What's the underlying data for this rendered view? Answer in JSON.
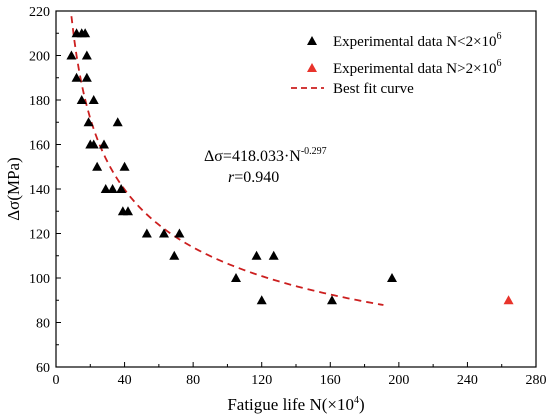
{
  "chart_data": {
    "type": "scatter",
    "title": "",
    "xlabel": "Fatigue life N(×10",
    "xlabel_sup": "4",
    "xlabel_end": ")",
    "ylabel": "Δσ(MPa)",
    "xlim": [
      0,
      280
    ],
    "ylim": [
      60,
      220
    ],
    "xticks": [
      0,
      40,
      80,
      120,
      160,
      200,
      240,
      280
    ],
    "yticks": [
      60,
      80,
      100,
      120,
      140,
      160,
      180,
      200,
      220
    ],
    "xtick_labels": [
      "0",
      "40",
      "80",
      "120",
      "160",
      "200",
      "240",
      "280"
    ],
    "ytick_labels": [
      "60",
      "80",
      "100",
      "120",
      "140",
      "160",
      "180",
      "200",
      "220"
    ],
    "legend_position": "top-right",
    "grid": false,
    "series": [
      {
        "name": "Experimental data N<2×10",
        "name_sup": "6",
        "marker": "triangle",
        "color": "#000000",
        "points": [
          [
            12,
            210
          ],
          [
            15,
            210
          ],
          [
            17,
            210
          ],
          [
            9,
            200
          ],
          [
            18,
            200
          ],
          [
            12,
            190
          ],
          [
            18,
            190
          ],
          [
            15,
            180
          ],
          [
            22,
            180
          ],
          [
            19,
            170
          ],
          [
            36,
            170
          ],
          [
            20,
            160
          ],
          [
            22,
            160
          ],
          [
            28,
            160
          ],
          [
            24,
            150
          ],
          [
            40,
            150
          ],
          [
            29,
            140
          ],
          [
            33,
            140
          ],
          [
            38,
            140
          ],
          [
            39,
            130
          ],
          [
            42,
            130
          ],
          [
            53,
            120
          ],
          [
            63,
            120
          ],
          [
            72,
            120
          ],
          [
            69,
            110
          ],
          [
            117,
            110
          ],
          [
            127,
            110
          ],
          [
            105,
            100
          ],
          [
            196,
            100
          ],
          [
            120,
            90
          ],
          [
            161,
            90
          ]
        ]
      },
      {
        "name": "Experimental data N>2×10",
        "name_sup": "6",
        "marker": "triangle",
        "color": "#e8332b",
        "points": [
          [
            264,
            90
          ]
        ]
      },
      {
        "name": "Best fit curve",
        "line_style": "dashed",
        "color": "#cc1f1f",
        "equation_coeff": 418.033,
        "equation_exp": -0.297,
        "x_range": [
          9,
          191
        ]
      }
    ],
    "annotations": {
      "equation_prefix": "Δσ=418.033·N",
      "equation_sup": "-0.297",
      "r_label": "r",
      "r_value": "=0.940"
    }
  }
}
